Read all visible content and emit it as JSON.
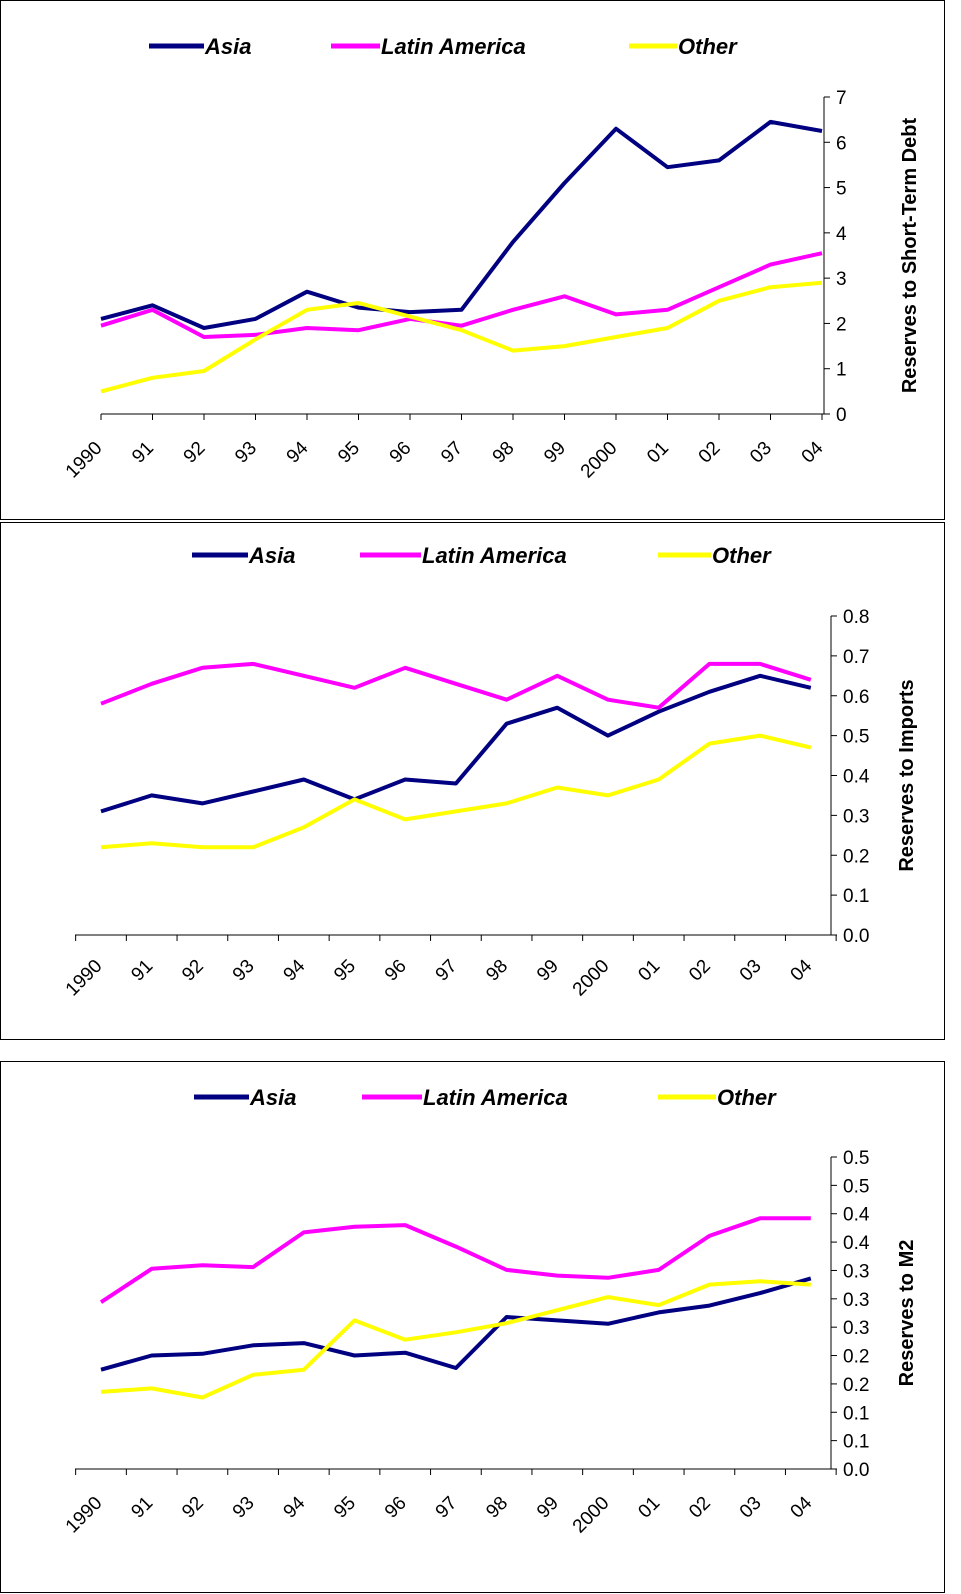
{
  "colors": {
    "Asia": "#000080",
    "Latin America": "#ff00ff",
    "Other": "#ffff00"
  },
  "chart_data": [
    {
      "type": "line",
      "title": "",
      "xlabel": "",
      "ylabel": "Reserves to Short-Term Debt",
      "ylim": [
        0,
        7
      ],
      "grid": false,
      "legend": "top",
      "x": [
        "1990",
        "91",
        "92",
        "93",
        "94",
        "95",
        "96",
        "97",
        "98",
        "99",
        "2000",
        "01",
        "02",
        "03",
        "04"
      ],
      "yticks": [
        "0",
        "1",
        "2",
        "3",
        "4",
        "5",
        "6",
        "7"
      ],
      "series": [
        {
          "name": "Asia",
          "values": [
            2.1,
            2.4,
            1.9,
            2.1,
            2.7,
            2.35,
            2.25,
            2.3,
            3.8,
            5.1,
            6.3,
            5.45,
            5.6,
            6.45,
            6.25
          ]
        },
        {
          "name": "Latin America",
          "values": [
            1.95,
            2.3,
            1.7,
            1.75,
            1.9,
            1.85,
            2.1,
            1.95,
            2.3,
            2.6,
            2.2,
            2.3,
            2.8,
            3.3,
            3.55
          ]
        },
        {
          "name": "Other",
          "values": [
            0.5,
            0.8,
            0.95,
            1.65,
            2.3,
            2.45,
            2.15,
            1.85,
            1.4,
            1.5,
            1.7,
            1.9,
            2.5,
            2.8,
            2.9
          ]
        }
      ]
    },
    {
      "type": "line",
      "title": "",
      "xlabel": "",
      "ylabel": "Reserves to Imports",
      "ylim": [
        0,
        0.8
      ],
      "grid": false,
      "legend": "top",
      "x": [
        "1990",
        "91",
        "92",
        "93",
        "94",
        "95",
        "96",
        "97",
        "98",
        "99",
        "2000",
        "01",
        "02",
        "03",
        "04"
      ],
      "yticks": [
        "0.0",
        "0.1",
        "0.2",
        "0.3",
        "0.4",
        "0.5",
        "0.6",
        "0.7",
        "0.8"
      ],
      "series": [
        {
          "name": "Asia",
          "values": [
            0.31,
            0.35,
            0.33,
            0.36,
            0.39,
            0.34,
            0.39,
            0.38,
            0.53,
            0.57,
            0.5,
            0.56,
            0.61,
            0.65,
            0.62
          ]
        },
        {
          "name": "Latin America",
          "values": [
            0.58,
            0.63,
            0.67,
            0.68,
            0.65,
            0.62,
            0.67,
            0.63,
            0.59,
            0.65,
            0.59,
            0.57,
            0.68,
            0.68,
            0.64
          ]
        },
        {
          "name": "Other",
          "values": [
            0.22,
            0.23,
            0.22,
            0.22,
            0.27,
            0.34,
            0.29,
            0.31,
            0.33,
            0.37,
            0.35,
            0.39,
            0.48,
            0.5,
            0.47
          ]
        }
      ]
    },
    {
      "type": "line",
      "title": "",
      "xlabel": "",
      "ylabel": "Reserves to M2",
      "ylim": [
        0,
        0.55
      ],
      "grid": false,
      "legend": "top",
      "x": [
        "1990",
        "91",
        "92",
        "93",
        "94",
        "95",
        "96",
        "97",
        "98",
        "99",
        "2000",
        "01",
        "02",
        "03",
        "04"
      ],
      "yticks": [
        "0.0",
        "0.1",
        "0.1",
        "0.2",
        "0.2",
        "0.3",
        "0.3",
        "0.3",
        "0.4",
        "0.4",
        "0.5",
        "0.5"
      ],
      "series": [
        {
          "name": "Asia",
          "values": [
            0.175,
            0.2,
            0.203,
            0.218,
            0.222,
            0.2,
            0.205,
            0.178,
            0.268,
            0.262,
            0.256,
            0.276,
            0.288,
            0.31,
            0.336
          ]
        },
        {
          "name": "Latin America",
          "values": [
            0.294,
            0.353,
            0.359,
            0.356,
            0.417,
            0.427,
            0.43,
            0.392,
            0.351,
            0.341,
            0.337,
            0.351,
            0.411,
            0.442,
            0.442
          ]
        },
        {
          "name": "Other",
          "values": [
            0.136,
            0.142,
            0.126,
            0.166,
            0.175,
            0.262,
            0.228,
            0.241,
            0.257,
            0.28,
            0.303,
            0.289,
            0.325,
            0.331,
            0.325
          ]
        }
      ]
    }
  ]
}
